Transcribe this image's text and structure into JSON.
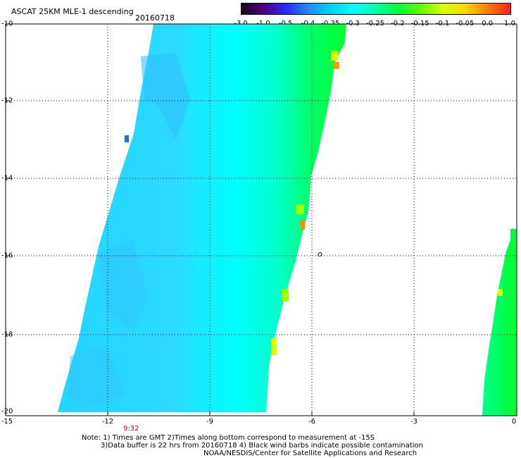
{
  "header": {
    "title": "ASCAT 25KM MLE-1 descending",
    "date": "20160718"
  },
  "colorbar": {
    "labels": [
      "-3.0",
      "-1.0",
      "-0.5",
      "-0.4",
      "-0.35",
      "-0.3",
      "-0.25",
      "-0.2",
      "-0.15",
      "-0.1",
      "-0.05",
      "0.0",
      "1.0"
    ],
    "colors": [
      "#1a0020",
      "#4b0082",
      "#2a2aff",
      "#1e8cff",
      "#00d4ff",
      "#00ffff",
      "#00ffaa",
      "#00ff30",
      "#60ff00",
      "#d8ff00",
      "#ffd800",
      "#ff7a00",
      "#ff1e1e"
    ]
  },
  "map": {
    "y_labels": [
      "-10",
      "-12",
      "-14",
      "-16",
      "-18",
      "-20"
    ],
    "x_labels": [
      "-15",
      "-12",
      "-9",
      "-6",
      "-3",
      "0"
    ],
    "pass_time": "9:32",
    "island_marker": "o"
  },
  "notes": {
    "line1": "Note: 1) Times are GMT 2)Times along bottom correspond to measurement at -15S",
    "line2": "3)Data buffer is 22 hrs from 20160718 4) Black wind barbs indicate possible contamination",
    "line3": "NOAA/NESDIS/Center for Satellite Applications and Research"
  },
  "colors": {
    "swath_cyan": "#00ffff",
    "swath_lightblue": "#22d6ff",
    "swath_green": "#00ff44",
    "swath_yellowgreen": "#a0ff00",
    "swath_orange": "#ff8c00"
  }
}
